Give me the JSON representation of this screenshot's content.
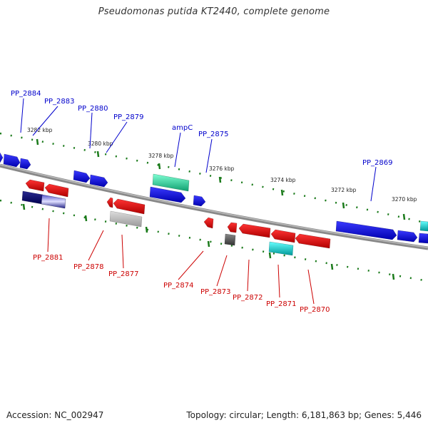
{
  "title": "Pseudomonas putida KT2440, complete genome",
  "footer": {
    "accession": "Accession: NC_002947",
    "summary": "Topology: circular; Length: 6,181,863 bp; Genes: 5,446"
  },
  "colors": {
    "forward_label": "#0000cc",
    "reverse_label": "#cc0000",
    "backbone": "#777777",
    "tick": "#1a7a1a"
  },
  "scale_labels": [
    "3282 kbp",
    "3280 kbp",
    "3278 kbp",
    "3276 kbp",
    "3274 kbp",
    "3272 kbp",
    "3270 kbp"
  ],
  "forward_genes": [
    "PP_2884",
    "PP_2883",
    "PP_2880",
    "PP_2879",
    "ampC",
    "PP_2875",
    "PP_2869"
  ],
  "reverse_genes": [
    "PP_2881",
    "PP_2878",
    "PP_2877",
    "PP_2874",
    "PP_2873",
    "PP_2872",
    "PP_2871",
    "PP_2870"
  ]
}
